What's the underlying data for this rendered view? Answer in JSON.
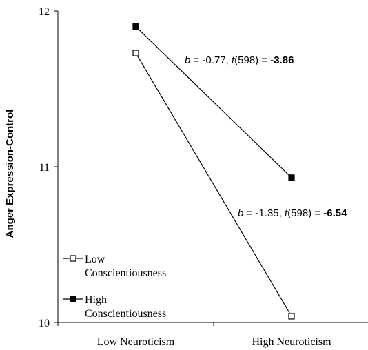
{
  "chart_data": {
    "type": "line",
    "ylabel": "Anger Expression-Control",
    "categories": [
      "Low Neuroticism",
      "High Neuroticism"
    ],
    "ylim": [
      10,
      12
    ],
    "yticks": [
      "10",
      "11",
      "12"
    ],
    "grid": false,
    "legend_position": "bottom-left",
    "series": [
      {
        "name": "Low Conscientiousness",
        "name_lines": [
          "Low",
          "Conscientiousness"
        ],
        "values": [
          11.73,
          10.04
        ],
        "marker": "open-square",
        "annotation": {
          "b": "-1.35",
          "t": "-6.54"
        }
      },
      {
        "name": "High Conscientiousness",
        "name_lines": [
          "High",
          "Conscientiousness"
        ],
        "values": [
          11.9,
          10.93
        ],
        "marker": "filled-square",
        "annotation": {
          "b": "-0.77",
          "t": "-3.86"
        }
      }
    ],
    "annotation_text": {
      "b_symbol": "b",
      "b_equals": " = ",
      "t_symbol": "t",
      "df": "(598) = ",
      "separator": ", "
    }
  }
}
